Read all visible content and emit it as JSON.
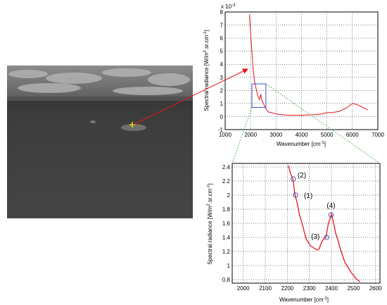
{
  "figure": {
    "thermal_image": {
      "marker": "yellow-crosshair",
      "colors": {
        "sky_light": "#9a9a9a",
        "sea": "#3a3a3a",
        "marker": "#f2e700",
        "arrow": "#e8141b",
        "zoom_lines": "#22aa22",
        "zoom_box": "#3355cc"
      }
    }
  },
  "chart_data": [
    {
      "type": "line",
      "title": "",
      "xlabel": "Wavenumber [cm",
      "xlabel_sup": "-1",
      "xlabel_tail": "]",
      "ylabel": "Spectral radiance [W/m",
      "ylabel_sup2": "2",
      "ylabel_mid": ".sr.cm",
      "ylabel_sup1": "-1",
      "ylabel_tail": "]",
      "exponent": "x 10",
      "exponent_power": "-3",
      "xlim": [
        1000,
        7000
      ],
      "ylim": [
        -1,
        8
      ],
      "xticks": [
        "1000",
        "2000",
        "3000",
        "4000",
        "5000",
        "6000",
        "7000"
      ],
      "yticks": [
        "-1",
        "0",
        "1",
        "2",
        "3",
        "4",
        "5",
        "6",
        "7",
        "8"
      ],
      "grid": true,
      "series_color": "#e8141b",
      "zoom_box": {
        "x": [
          2050,
          2600
        ],
        "y": [
          0.7,
          2.5
        ]
      },
      "x": [
        1950,
        2000,
        2050,
        2100,
        2150,
        2200,
        2230,
        2280,
        2350,
        2400,
        2450,
        2500,
        2600,
        2700,
        2800,
        3000,
        3200,
        3500,
        4000,
        4500,
        4800,
        5000,
        5200,
        5500,
        5800,
        6000,
        6200,
        6400,
        6600
      ],
      "y": [
        7.8,
        6.4,
        5.0,
        3.6,
        2.7,
        2.3,
        2.0,
        1.6,
        1.3,
        1.7,
        1.2,
        1.0,
        0.6,
        0.35,
        0.3,
        0.2,
        0.15,
        0.1,
        0.1,
        0.15,
        0.2,
        0.3,
        0.3,
        0.4,
        0.7,
        1.0,
        0.9,
        0.7,
        0.5
      ]
    },
    {
      "type": "line",
      "title": "",
      "xlabel": "Wavenumber [cm",
      "xlabel_sup": "-1",
      "xlabel_tail": "]",
      "ylabel": "Spectral radiance [W/m",
      "ylabel_sup2": "2",
      "ylabel_mid": ".sr.cm",
      "ylabel_sup1": "-1",
      "ylabel_tail": "]",
      "xlim": [
        1950,
        2620
      ],
      "ylim": [
        0.75,
        2.45
      ],
      "xticks": [
        "2000",
        "2100",
        "2200",
        "2300",
        "2400",
        "2500",
        "2600"
      ],
      "yticks": [
        "0.8",
        "1",
        "1.2",
        "1.4",
        "1.6",
        "1.8",
        "2",
        "2.2",
        "2.4"
      ],
      "grid": true,
      "series_color": "#e8141b",
      "x": [
        2205,
        2215,
        2225,
        2235,
        2245,
        2255,
        2265,
        2275,
        2285,
        2295,
        2305,
        2315,
        2325,
        2335,
        2345,
        2355,
        2365,
        2375,
        2385,
        2395,
        2400,
        2410,
        2420,
        2430,
        2440,
        2450,
        2460,
        2470,
        2480,
        2490,
        2500,
        2510,
        2520,
        2530
      ],
      "y": [
        2.42,
        2.3,
        2.23,
        2.0,
        1.88,
        1.72,
        1.62,
        1.5,
        1.38,
        1.33,
        1.28,
        1.26,
        1.24,
        1.22,
        1.24,
        1.33,
        1.38,
        1.4,
        1.58,
        1.68,
        1.73,
        1.6,
        1.45,
        1.36,
        1.24,
        1.15,
        1.05,
        1.0,
        0.95,
        0.9,
        0.86,
        0.82,
        0.79,
        0.77
      ],
      "annotations": [
        {
          "label": "(1)",
          "x": 2237,
          "y": 2.0
        },
        {
          "label": "(2)",
          "x": 2227,
          "y": 2.23
        },
        {
          "label": "(3)",
          "x": 2378,
          "y": 1.4
        },
        {
          "label": "(4)",
          "x": 2398,
          "y": 1.72
        }
      ]
    }
  ]
}
